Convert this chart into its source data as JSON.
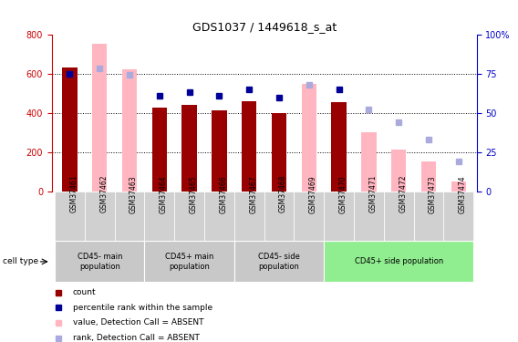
{
  "title": "GDS1037 / 1449618_s_at",
  "samples": [
    "GSM37461",
    "GSM37462",
    "GSM37463",
    "GSM37464",
    "GSM37465",
    "GSM37466",
    "GSM37467",
    "GSM37468",
    "GSM37469",
    "GSM37470",
    "GSM37471",
    "GSM37472",
    "GSM37473",
    "GSM37474"
  ],
  "count_values": [
    630,
    null,
    null,
    425,
    440,
    415,
    460,
    400,
    null,
    455,
    null,
    null,
    null,
    null
  ],
  "count_absent_values": [
    null,
    750,
    620,
    null,
    null,
    null,
    null,
    null,
    545,
    null,
    300,
    215,
    155,
    50
  ],
  "rank_values": [
    75,
    null,
    null,
    61,
    63,
    61,
    65,
    60,
    null,
    65,
    null,
    null,
    null,
    null
  ],
  "rank_absent_values": [
    null,
    78,
    74,
    null,
    null,
    null,
    null,
    null,
    68,
    null,
    52,
    44,
    33,
    19
  ],
  "cell_type_groups": [
    {
      "label": "CD45- main\npopulation",
      "start": 0,
      "end": 3,
      "color": "#c8c8c8"
    },
    {
      "label": "CD45+ main\npopulation",
      "start": 3,
      "end": 6,
      "color": "#c8c8c8"
    },
    {
      "label": "CD45- side\npopulation",
      "start": 6,
      "end": 9,
      "color": "#c8c8c8"
    },
    {
      "label": "CD45+ side population",
      "start": 9,
      "end": 14,
      "color": "#90ee90"
    }
  ],
  "ylim_left": [
    0,
    800
  ],
  "ylim_right": [
    0,
    100
  ],
  "yticks_left": [
    0,
    200,
    400,
    600,
    800
  ],
  "yticks_right": [
    0,
    25,
    50,
    75,
    100
  ],
  "dark_red": "#990000",
  "light_red": "#FFB6C1",
  "dark_blue": "#000099",
  "light_blue": "#AAAADD",
  "left_axis_color": "#CC0000",
  "right_axis_color": "#0000CC",
  "sample_box_color": "#d0d0d0"
}
